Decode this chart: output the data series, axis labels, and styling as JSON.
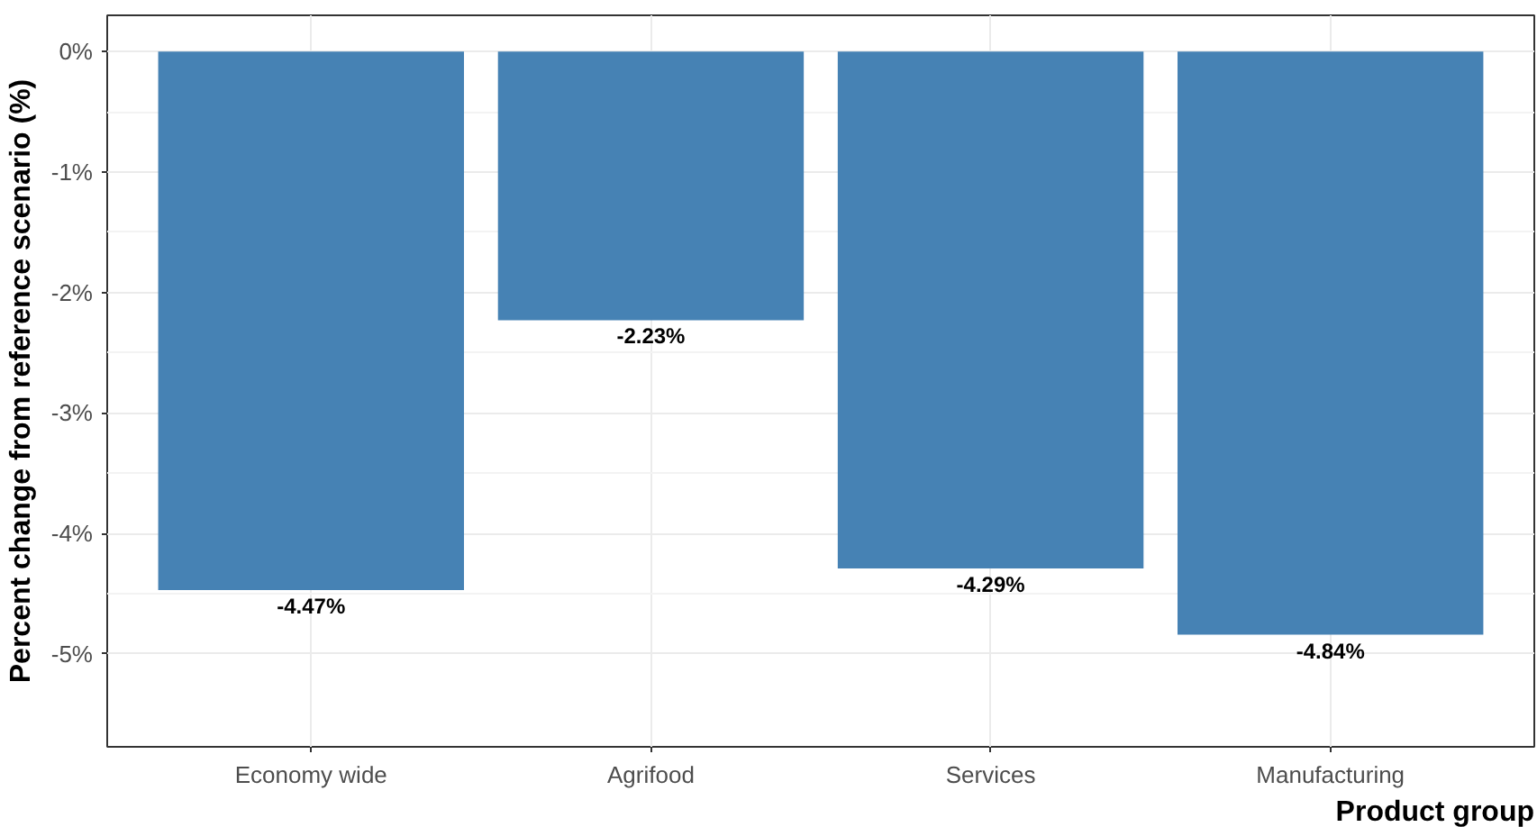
{
  "chart_data": {
    "type": "bar",
    "xlabel": "Product group",
    "ylabel": "Percent change from reference scenario (%)",
    "categories": [
      "Economy wide",
      "Agrifood",
      "Services",
      "Manufacturing"
    ],
    "values": [
      -4.47,
      -2.23,
      -4.29,
      -4.84
    ],
    "value_labels": [
      "-4.47%",
      "-2.23%",
      "-4.29%",
      "-4.84%"
    ],
    "color": "#4682b4",
    "ylim": [
      -5.77,
      0.3
    ],
    "yticks": [
      {
        "value": 0,
        "label": "0%"
      },
      {
        "value": -1,
        "label": "-1%"
      },
      {
        "value": -2,
        "label": "-2%"
      },
      {
        "value": -3,
        "label": "-3%"
      },
      {
        "value": -4,
        "label": "-4%"
      },
      {
        "value": -5,
        "label": "-5%"
      }
    ],
    "grid": true
  }
}
